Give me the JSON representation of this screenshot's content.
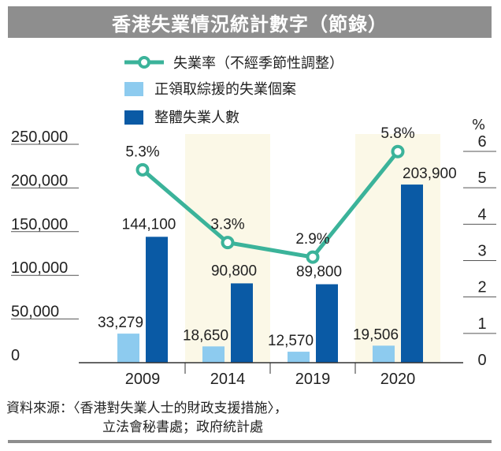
{
  "chart_data": {
    "type": "bar+line",
    "title": "香港失業情況統計數字（節錄）",
    "categories": [
      "2009",
      "2014",
      "2019",
      "2020"
    ],
    "series": [
      {
        "name": "失業率（不經季節性調整）",
        "kind": "line",
        "axis": "right",
        "values": [
          5.3,
          3.3,
          2.9,
          5.8
        ],
        "labels": [
          "5.3%",
          "3.3%",
          "2.9%",
          "5.8%"
        ]
      },
      {
        "name": "正領取綜援的失業個案",
        "kind": "bar",
        "axis": "left",
        "values": [
          33279,
          18650,
          12570,
          19506
        ],
        "labels": [
          "33,279",
          "18,650",
          "12,570",
          "19,506"
        ]
      },
      {
        "name": "整體失業人數",
        "kind": "bar",
        "axis": "left",
        "values": [
          144100,
          90800,
          89800,
          203900
        ],
        "labels": [
          "144,100",
          "90,800",
          "89,800",
          "203,900"
        ]
      }
    ],
    "left_axis": {
      "ylim": [
        0,
        250000
      ],
      "ticks": [
        0,
        50000,
        100000,
        150000,
        200000,
        250000
      ],
      "tick_labels": [
        "0",
        "50,000",
        "100,000",
        "150,000",
        "200,000",
        "250,000"
      ]
    },
    "right_axis": {
      "unit_label": "%",
      "ylim": [
        0,
        6
      ],
      "ticks": [
        0,
        1,
        2,
        3,
        4,
        5,
        6
      ],
      "tick_labels": [
        "0",
        "1",
        "2",
        "3",
        "4",
        "5",
        "6"
      ]
    },
    "legend_position": "top",
    "grid": false
  },
  "colors": {
    "title_bar": "#8e8e8e",
    "line": "#3bb39a",
    "bar_light": "#8dcbef",
    "bar_dark": "#0a5aa5",
    "shade_band": "#fbf8e7"
  },
  "source": {
    "line1": "資料來源：〈香港對失業人士的財政支援措施〉，",
    "line2": "立法會秘書處；政府統計處"
  }
}
